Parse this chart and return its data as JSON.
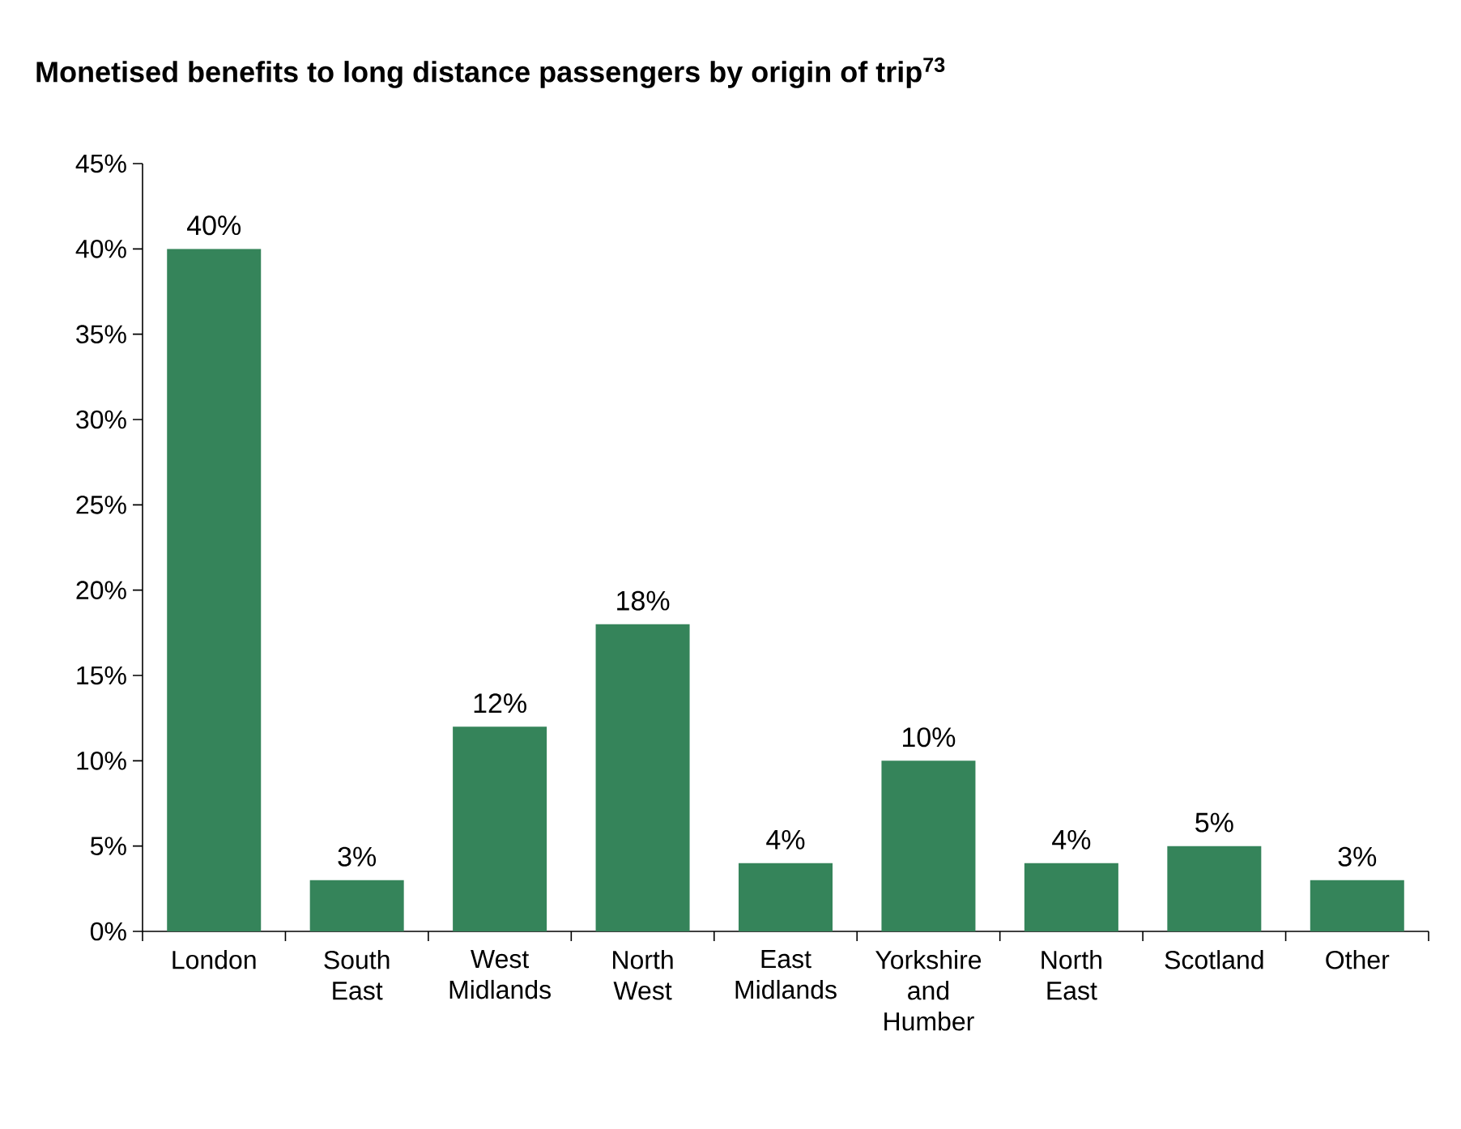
{
  "chart_data": {
    "type": "bar",
    "title": "Monetised benefits to long distance passengers by origin of trip$^{73}$",
    "categories": [
      "London",
      "South East",
      "West Midlands",
      "North West",
      "East Midlands",
      "Yorkshire and Humber",
      "North East",
      "Scotland",
      "Other"
    ],
    "values": [
      40,
      3,
      12,
      18,
      4,
      10,
      4,
      5,
      3
    ],
    "value_labels": [
      "40%",
      "3%",
      "12%",
      "18%",
      "4%",
      "10%",
      "4%",
      "5%",
      "3%"
    ],
    "color": "#35845a",
    "ylim": [
      0,
      45
    ],
    "yticks": [
      {
        "value": 0,
        "label": "0%"
      },
      {
        "value": 5,
        "label": "5%"
      },
      {
        "value": 10,
        "label": "10%"
      },
      {
        "value": 15,
        "label": "15%"
      },
      {
        "value": 20,
        "label": "20%"
      },
      {
        "value": 25,
        "label": "25%"
      },
      {
        "value": 30,
        "label": "30%"
      },
      {
        "value": 35,
        "label": "35%"
      },
      {
        "value": 40,
        "label": "40%"
      },
      {
        "value": 45,
        "label": "45%"
      }
    ],
    "grid": false
  }
}
